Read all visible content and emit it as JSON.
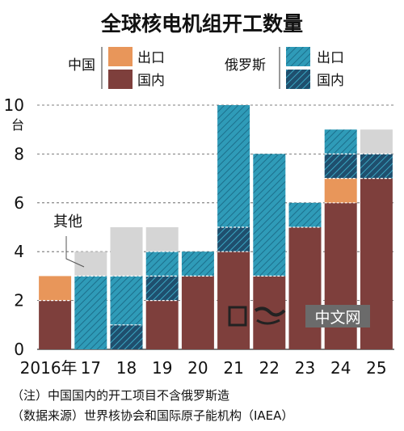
{
  "title": "全球核电机组开工数量",
  "legend": {
    "china_label": "中国",
    "russia_label": "俄罗斯",
    "export_label": "出口",
    "domestic_label": "国内"
  },
  "colors": {
    "china_export": "#e8965a",
    "china_domestic": "#7e3f3c",
    "russia_export": "#2f9bb8",
    "russia_domestic": "#1f4f6e",
    "other": "#d5d5d5",
    "grid": "#555555"
  },
  "annotation": "其他",
  "watermark": "中文网",
  "footnotes": [
    "（注）中国国内的开工项目不含俄罗斯造",
    "（数据来源）世界核协会和国际原子能机构（IAEA）"
  ],
  "chart_data": {
    "type": "bar",
    "stacked": true,
    "title": "全球核电机组开工数量",
    "y_unit": "台",
    "ylim": [
      0,
      10
    ],
    "yticks": [
      "0",
      "2",
      "4",
      "6",
      "8",
      "10"
    ],
    "categories": [
      "2016年",
      "17",
      "18",
      "19",
      "20",
      "21",
      "22",
      "23",
      "24",
      "25"
    ],
    "series": [
      {
        "name": "中国 国内",
        "key": "china_domestic",
        "values": [
          2,
          0,
          0,
          2,
          3,
          4,
          3,
          5,
          6,
          7
        ]
      },
      {
        "name": "中国 出口",
        "key": "china_export",
        "values": [
          1,
          0,
          0,
          0,
          0,
          0,
          0,
          0,
          1,
          0
        ]
      },
      {
        "name": "俄罗斯 国内",
        "key": "russia_domestic",
        "values": [
          0,
          0,
          1,
          1,
          0,
          1,
          0,
          0,
          1,
          1
        ]
      },
      {
        "name": "俄罗斯 出口",
        "key": "russia_export",
        "values": [
          0,
          3,
          2,
          1,
          1,
          5,
          5,
          1,
          1,
          0
        ]
      },
      {
        "name": "其他",
        "key": "other",
        "values": [
          0,
          1,
          2,
          1,
          0,
          0,
          0,
          0,
          0,
          1
        ]
      }
    ],
    "grid": true,
    "legend_position": "top"
  }
}
